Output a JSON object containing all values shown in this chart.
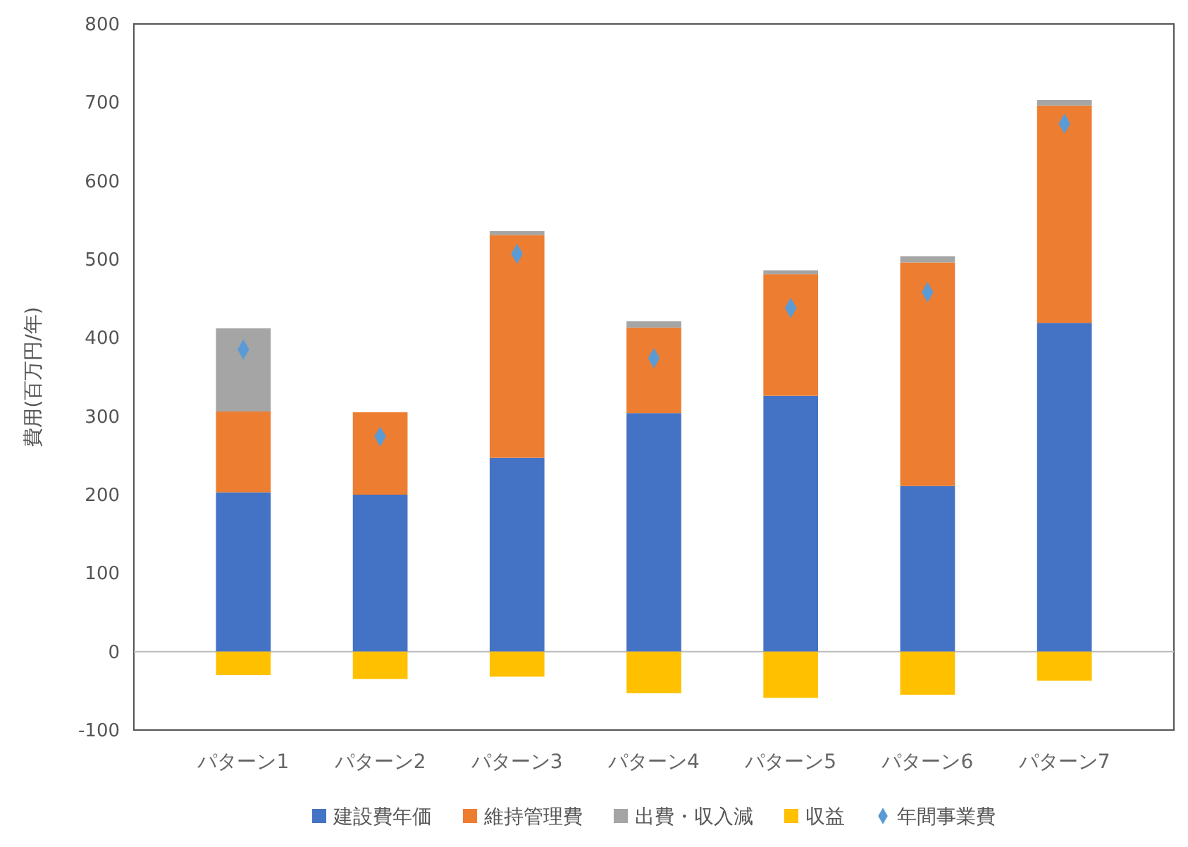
{
  "chart_data": {
    "type": "bar",
    "stacked": true,
    "ylabel": "費用(百万円/年)",
    "categories": [
      "パターン1",
      "パターン2",
      "パターン3",
      "パターン4",
      "パターン5",
      "パターン6",
      "パターン7"
    ],
    "series": [
      {
        "name": "建設費年価",
        "color": "#4472c4",
        "values": [
          203,
          200,
          247,
          304,
          326,
          211,
          419
        ]
      },
      {
        "name": "維持管理費",
        "color": "#ed7d31",
        "values": [
          103,
          105,
          284,
          109,
          155,
          285,
          277
        ]
      },
      {
        "name": "出費・収入減",
        "color": "#a5a5a5",
        "values": [
          106,
          0,
          5,
          8,
          5,
          8,
          7
        ]
      },
      {
        "name": "収益",
        "color": "#ffc000",
        "values": [
          -30,
          -35,
          -32,
          -53,
          -59,
          -55,
          -37
        ]
      },
      {
        "name": "年間事業費",
        "type": "scatter",
        "color": "#5b9bd5",
        "marker": "diamond",
        "x": [
          "パターン1",
          "パターン2",
          "パターン3",
          "パターン4",
          "パターン5",
          "パターン6",
          "パターン7"
        ],
        "values": [
          385,
          274,
          507,
          374,
          438,
          458,
          673
        ]
      }
    ],
    "ylim": [
      -100,
      800
    ],
    "yticks": [
      -100,
      0,
      100,
      200,
      300,
      400,
      500,
      600,
      700,
      800
    ],
    "legend": "bottom"
  }
}
